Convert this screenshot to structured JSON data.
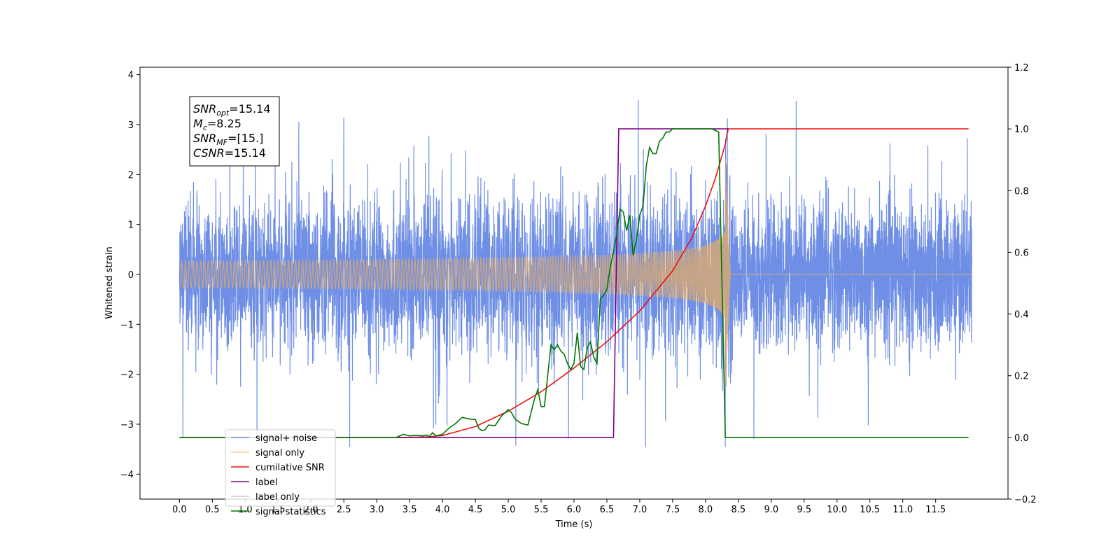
{
  "chart_data": {
    "type": "line",
    "xlabel": "Time (s)",
    "ylabel_left": "Whitened strain",
    "xlim": [
      -0.6,
      12.6
    ],
    "ylim_left": [
      -4.5,
      4.15
    ],
    "ylim_right": [
      -0.2,
      1.2
    ],
    "xticks": [
      "0.0",
      "0.5",
      "1.0",
      "1.5",
      "2.0",
      "2.5",
      "3.0",
      "3.5",
      "4.0",
      "4.5",
      "5.0",
      "5.5",
      "6.0",
      "6.5",
      "7.0",
      "7.5",
      "8.0",
      "8.5",
      "9.0",
      "9.5",
      "10.0",
      "10.5",
      "11.0",
      "11.5"
    ],
    "yticks_left": [
      "4",
      "3",
      "2",
      "1",
      "0",
      "−1",
      "−2",
      "−3",
      "−4"
    ],
    "yticks_right": [
      "1.2",
      "1.0",
      "0.8",
      "0.6",
      "0.4",
      "0.2",
      "0.0",
      "−0.2"
    ],
    "grid": false,
    "legend_position": "lower-left",
    "annotation": [
      {
        "main": "SNR",
        "sub": "opt",
        "value": "=15.14"
      },
      {
        "main": "M",
        "sub": "c",
        "value": "=8.25"
      },
      {
        "main": "SNR",
        "sub": "MF",
        "value": "=[15.]"
      },
      {
        "main": "CSNR",
        "sub": "",
        "value": "=15.14"
      }
    ],
    "noise": {
      "t_start": 0.0,
      "t_end": 12.05,
      "amplitude_std": 0.95
    },
    "signal": {
      "t_start": 0.0,
      "t_merge": 8.3,
      "t_ringdown_end": 8.38
    },
    "series": [
      {
        "name": "signal+ noise",
        "color": "#6f8fe6",
        "axis": "left"
      },
      {
        "name": "signal only",
        "color": "#ffb347",
        "axis": "left"
      },
      {
        "name": "cumilative SNR",
        "color": "#ee1111",
        "axis": "right",
        "x": [
          0.0,
          3.4,
          3.8,
          4.0,
          4.5,
          5.0,
          5.5,
          6.0,
          6.5,
          7.0,
          7.5,
          7.8,
          8.0,
          8.15,
          8.3,
          8.34,
          12.0
        ],
        "y": [
          0.0,
          0.0,
          0.002,
          0.006,
          0.035,
          0.085,
          0.148,
          0.225,
          0.31,
          0.41,
          0.54,
          0.65,
          0.75,
          0.84,
          0.95,
          1.0,
          1.0
        ]
      },
      {
        "name": "label",
        "color": "#800080",
        "axis": "right",
        "x": [
          3.3,
          6.6,
          6.68,
          8.34,
          8.34
        ],
        "y": [
          0.0,
          0.0,
          1.0,
          1.0,
          0.99
        ]
      },
      {
        "name": "label only",
        "color": "#cccccc",
        "axis": "right",
        "x": [],
        "y": []
      },
      {
        "name": "signal statistics",
        "color": "#007700",
        "axis": "right",
        "x": [
          0.0,
          3.3,
          3.4,
          3.5,
          3.6,
          3.7,
          3.75,
          3.8,
          3.85,
          3.9,
          4.0,
          4.1,
          4.2,
          4.3,
          4.4,
          4.5,
          4.55,
          4.6,
          4.65,
          4.7,
          4.8,
          4.9,
          5.0,
          5.05,
          5.1,
          5.2,
          5.3,
          5.4,
          5.45,
          5.5,
          5.55,
          5.6,
          5.65,
          5.7,
          5.75,
          5.8,
          5.85,
          5.9,
          5.95,
          6.0,
          6.05,
          6.1,
          6.15,
          6.2,
          6.25,
          6.3,
          6.35,
          6.4,
          6.45,
          6.5,
          6.55,
          6.6,
          6.65,
          6.7,
          6.75,
          6.8,
          6.85,
          6.9,
          6.95,
          7.0,
          7.05,
          7.1,
          7.15,
          7.2,
          7.25,
          7.3,
          7.35,
          7.4,
          7.45,
          7.5,
          7.55,
          7.6,
          7.7,
          7.8,
          7.9,
          8.0,
          8.1,
          8.2,
          8.25,
          8.3,
          8.35,
          8.4,
          12.0
        ],
        "y": [
          0.0,
          0.0,
          0.01,
          0.005,
          0.007,
          0.005,
          0.008,
          0.003,
          0.015,
          0.005,
          0.01,
          0.03,
          0.045,
          0.065,
          0.06,
          0.058,
          0.03,
          0.022,
          0.025,
          0.04,
          0.038,
          0.07,
          0.09,
          0.08,
          0.06,
          0.045,
          0.04,
          0.125,
          0.155,
          0.1,
          0.1,
          0.2,
          0.3,
          0.285,
          0.3,
          0.28,
          0.27,
          0.24,
          0.22,
          0.24,
          0.34,
          0.23,
          0.22,
          0.29,
          0.31,
          0.26,
          0.24,
          0.45,
          0.46,
          0.48,
          0.55,
          0.6,
          0.66,
          0.74,
          0.73,
          0.67,
          0.72,
          0.59,
          0.64,
          0.72,
          0.75,
          0.88,
          0.94,
          0.92,
          0.92,
          0.96,
          0.97,
          0.99,
          0.99,
          1.0,
          1.0,
          1.0,
          1.0,
          1.0,
          1.0,
          1.0,
          1.0,
          0.99,
          0.5,
          0.0,
          0.0,
          0.0,
          0.0
        ]
      }
    ]
  }
}
